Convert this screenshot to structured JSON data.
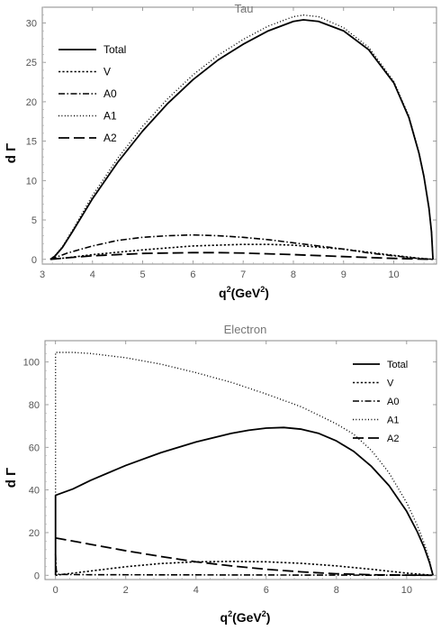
{
  "chart_data": [
    {
      "type": "line",
      "title": "Tau",
      "xlabel": "q",
      "xlabel_sup": "2",
      "xlabel_unit": "(GeV",
      "xlabel_unit_sup": "2",
      "xlabel_unit_close": ")",
      "ylabel": "d Γ",
      "xlim": [
        3.0,
        10.85
      ],
      "ylim": [
        -0.6,
        32.0
      ],
      "xticks": [
        3,
        4,
        5,
        6,
        7,
        8,
        9,
        10
      ],
      "yticks": [
        0,
        5,
        10,
        15,
        20,
        25,
        30
      ],
      "grid": false,
      "legend_position": "top-left",
      "series": [
        {
          "name": "Total",
          "style": "solid",
          "points": [
            [
              3.16,
              0.0
            ],
            [
              3.25,
              0.4
            ],
            [
              3.4,
              1.5
            ],
            [
              3.6,
              3.5
            ],
            [
              3.8,
              5.6
            ],
            [
              4.0,
              7.7
            ],
            [
              4.5,
              12.3
            ],
            [
              5.0,
              16.3
            ],
            [
              5.5,
              19.8
            ],
            [
              6.0,
              22.8
            ],
            [
              6.5,
              25.3
            ],
            [
              7.0,
              27.3
            ],
            [
              7.5,
              29.0
            ],
            [
              8.0,
              30.2
            ],
            [
              8.2,
              30.4
            ],
            [
              8.5,
              30.2
            ],
            [
              9.0,
              29.0
            ],
            [
              9.5,
              26.6
            ],
            [
              10.0,
              22.4
            ],
            [
              10.3,
              18.0
            ],
            [
              10.5,
              13.5
            ],
            [
              10.6,
              10.5
            ],
            [
              10.7,
              6.5
            ],
            [
              10.75,
              3.5
            ],
            [
              10.78,
              0.0
            ]
          ]
        },
        {
          "name": "V",
          "style": "dashed-short",
          "points": [
            [
              3.16,
              0.0
            ],
            [
              3.5,
              0.2
            ],
            [
              4.0,
              0.6
            ],
            [
              5.0,
              1.2
            ],
            [
              6.0,
              1.7
            ],
            [
              7.0,
              1.9
            ],
            [
              7.5,
              1.9
            ],
            [
              8.0,
              1.8
            ],
            [
              9.0,
              1.3
            ],
            [
              10.0,
              0.5
            ],
            [
              10.5,
              0.15
            ],
            [
              10.78,
              0.0
            ]
          ]
        },
        {
          "name": "A0",
          "style": "dash-dot",
          "points": [
            [
              3.16,
              0.0
            ],
            [
              3.5,
              0.8
            ],
            [
              4.0,
              1.7
            ],
            [
              4.5,
              2.4
            ],
            [
              5.0,
              2.8
            ],
            [
              5.5,
              3.0
            ],
            [
              6.0,
              3.1
            ],
            [
              6.5,
              3.0
            ],
            [
              7.0,
              2.8
            ],
            [
              7.5,
              2.5
            ],
            [
              8.0,
              2.1
            ],
            [
              8.5,
              1.7
            ],
            [
              9.0,
              1.3
            ],
            [
              9.5,
              0.8
            ],
            [
              10.0,
              0.45
            ],
            [
              10.5,
              0.1
            ],
            [
              10.78,
              0.0
            ]
          ]
        },
        {
          "name": "A1",
          "style": "dotted",
          "points": [
            [
              3.16,
              0.0
            ],
            [
              3.25,
              0.45
            ],
            [
              3.4,
              1.6
            ],
            [
              3.6,
              3.7
            ],
            [
              3.8,
              5.9
            ],
            [
              4.0,
              8.1
            ],
            [
              4.5,
              12.8
            ],
            [
              5.0,
              16.9
            ],
            [
              5.5,
              20.4
            ],
            [
              6.0,
              23.4
            ],
            [
              6.5,
              25.9
            ],
            [
              7.0,
              27.9
            ],
            [
              7.5,
              29.6
            ],
            [
              8.0,
              30.8
            ],
            [
              8.2,
              31.0
            ],
            [
              8.5,
              30.8
            ],
            [
              9.0,
              29.4
            ],
            [
              9.5,
              26.9
            ],
            [
              10.0,
              22.6
            ],
            [
              10.3,
              18.2
            ],
            [
              10.5,
              13.6
            ],
            [
              10.6,
              10.5
            ],
            [
              10.7,
              6.5
            ],
            [
              10.75,
              3.5
            ],
            [
              10.78,
              0.0
            ]
          ]
        },
        {
          "name": "A2",
          "style": "dashed-long",
          "points": [
            [
              3.16,
              0.0
            ],
            [
              3.5,
              0.2
            ],
            [
              4.0,
              0.45
            ],
            [
              5.0,
              0.75
            ],
            [
              6.0,
              0.85
            ],
            [
              6.5,
              0.85
            ],
            [
              7.0,
              0.8
            ],
            [
              8.0,
              0.6
            ],
            [
              9.0,
              0.35
            ],
            [
              10.0,
              0.12
            ],
            [
              10.78,
              0.0
            ]
          ]
        }
      ]
    },
    {
      "type": "line",
      "title": "Electron",
      "xlabel": "q",
      "xlabel_sup": "2",
      "xlabel_unit": "(GeV",
      "xlabel_unit_sup": "2",
      "xlabel_unit_close": ")",
      "ylabel": "d Γ",
      "xlim": [
        -0.3,
        10.85
      ],
      "ylim": [
        -2.0,
        110.0
      ],
      "xticks": [
        0,
        2,
        4,
        6,
        8,
        10
      ],
      "yticks": [
        0,
        20,
        40,
        60,
        80,
        100
      ],
      "grid": false,
      "legend_position": "top-right",
      "series": [
        {
          "name": "Total",
          "style": "solid",
          "points": [
            [
              0.0,
              0.0
            ],
            [
              0.0,
              37.5
            ],
            [
              0.5,
              40.5
            ],
            [
              1.0,
              44.5
            ],
            [
              2.0,
              51.5
            ],
            [
              3.0,
              57.5
            ],
            [
              4.0,
              62.5
            ],
            [
              5.0,
              66.5
            ],
            [
              5.5,
              68.0
            ],
            [
              6.0,
              69.0
            ],
            [
              6.5,
              69.3
            ],
            [
              7.0,
              68.5
            ],
            [
              7.5,
              66.5
            ],
            [
              8.0,
              63.0
            ],
            [
              8.5,
              58.0
            ],
            [
              9.0,
              51.0
            ],
            [
              9.5,
              42.0
            ],
            [
              10.0,
              30.0
            ],
            [
              10.3,
              20.5
            ],
            [
              10.5,
              13.0
            ],
            [
              10.65,
              6.0
            ],
            [
              10.75,
              0.0
            ]
          ]
        },
        {
          "name": "V",
          "style": "dashed-short",
          "points": [
            [
              0.0,
              0.0
            ],
            [
              1.0,
              2.0
            ],
            [
              2.0,
              4.0
            ],
            [
              3.0,
              5.5
            ],
            [
              4.0,
              6.3
            ],
            [
              5.0,
              6.5
            ],
            [
              6.0,
              6.3
            ],
            [
              7.0,
              5.6
            ],
            [
              8.0,
              4.4
            ],
            [
              9.0,
              2.8
            ],
            [
              10.0,
              1.0
            ],
            [
              10.75,
              0.0
            ]
          ]
        },
        {
          "name": "A0",
          "style": "dash-dot",
          "points": [
            [
              0.0,
              10.0
            ],
            [
              0.02,
              2.5
            ],
            [
              0.05,
              0.8
            ],
            [
              0.1,
              0.4
            ],
            [
              1.0,
              0.25
            ],
            [
              3.0,
              0.2
            ],
            [
              5.0,
              0.15
            ],
            [
              7.0,
              0.1
            ],
            [
              9.0,
              0.05
            ],
            [
              10.75,
              0.0
            ]
          ]
        },
        {
          "name": "A1",
          "style": "dotted",
          "points": [
            [
              0.0,
              0.0
            ],
            [
              0.0,
              104.5
            ],
            [
              0.5,
              104.5
            ],
            [
              1.0,
              104.0
            ],
            [
              2.0,
              102.0
            ],
            [
              3.0,
              99.0
            ],
            [
              4.0,
              95.0
            ],
            [
              5.0,
              90.5
            ],
            [
              6.0,
              85.0
            ],
            [
              7.0,
              79.0
            ],
            [
              8.0,
              71.0
            ],
            [
              8.5,
              66.0
            ],
            [
              9.0,
              58.5
            ],
            [
              9.5,
              48.0
            ],
            [
              10.0,
              34.0
            ],
            [
              10.3,
              23.5
            ],
            [
              10.5,
              15.0
            ],
            [
              10.65,
              7.0
            ],
            [
              10.75,
              0.0
            ]
          ]
        },
        {
          "name": "A2",
          "style": "dashed-long",
          "points": [
            [
              0.0,
              17.5
            ],
            [
              1.0,
              14.5
            ],
            [
              2.0,
              11.5
            ],
            [
              3.0,
              8.8
            ],
            [
              4.0,
              6.3
            ],
            [
              5.0,
              4.4
            ],
            [
              6.0,
              2.8
            ],
            [
              7.0,
              1.6
            ],
            [
              8.0,
              0.7
            ],
            [
              9.0,
              0.25
            ],
            [
              10.0,
              0.05
            ],
            [
              10.75,
              0.0
            ]
          ]
        }
      ]
    }
  ]
}
